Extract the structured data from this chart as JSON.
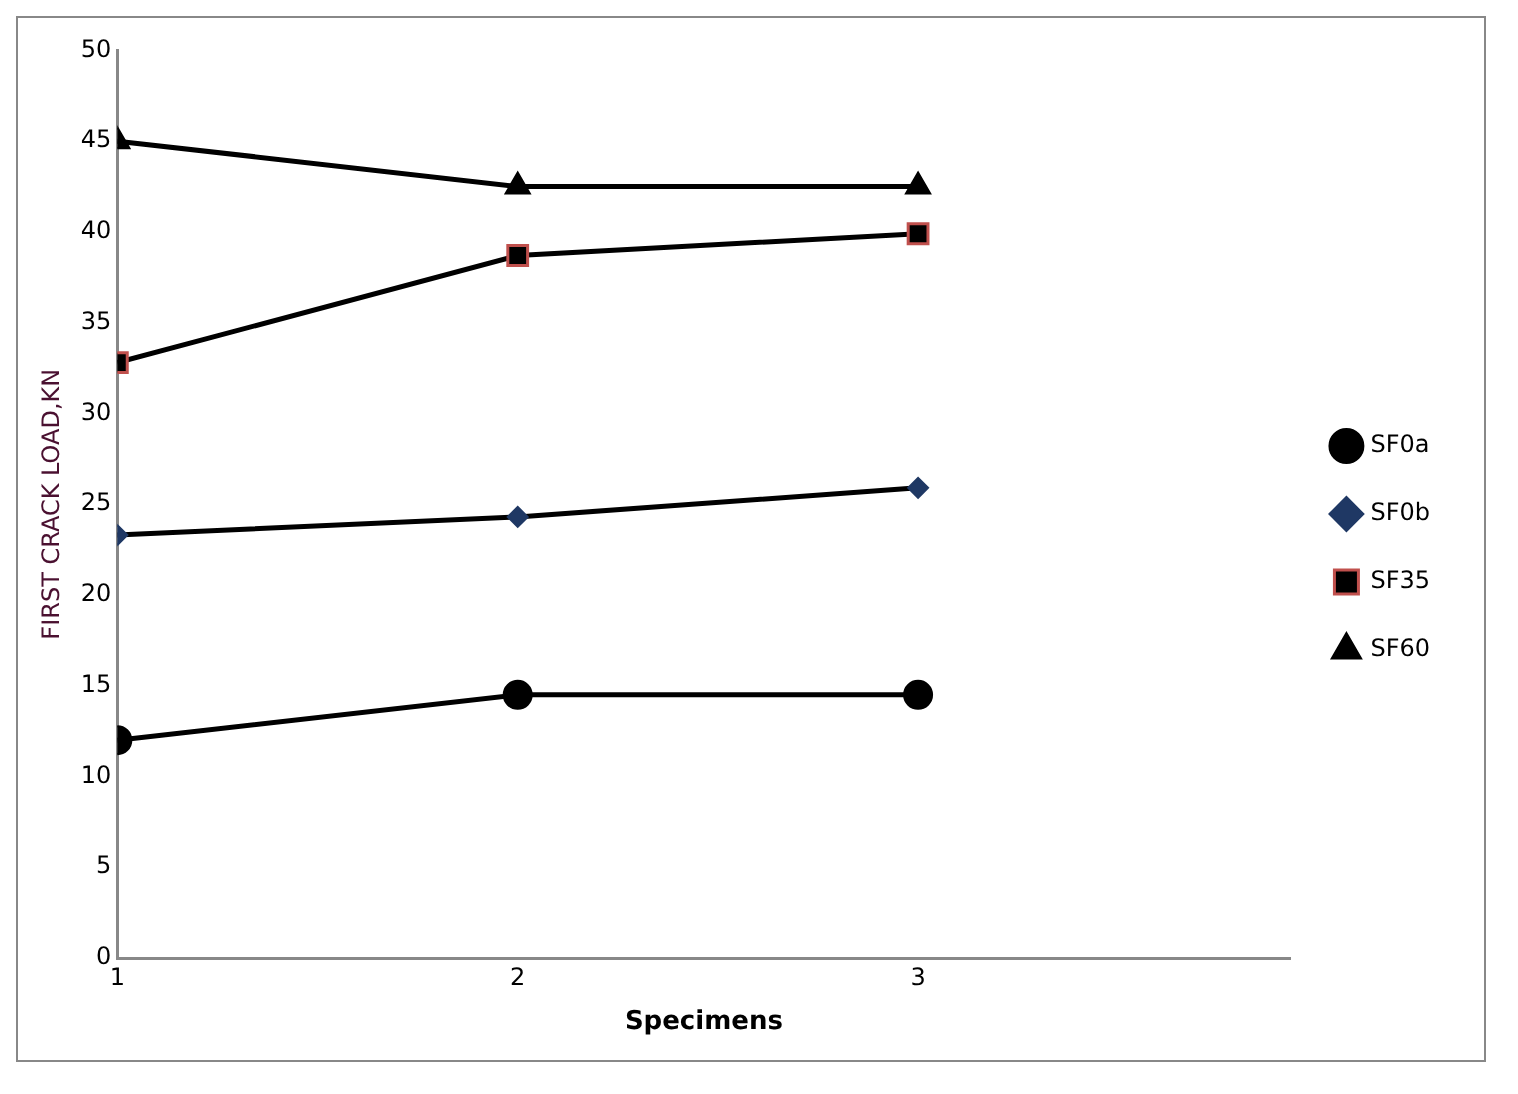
{
  "chart_data": {
    "type": "line",
    "xlabel": "Specimens",
    "ylabel": "FIRST CRACK LOAD,KN",
    "x": [
      1,
      2,
      3
    ],
    "xlim": [
      1,
      3.93
    ],
    "xticks": [
      1,
      2,
      3
    ],
    "ylim": [
      0,
      50
    ],
    "yticks": [
      0,
      5,
      10,
      15,
      20,
      25,
      30,
      35,
      40,
      45,
      50
    ],
    "grid": false,
    "legend": "right",
    "series": [
      {
        "name": "SF0a",
        "color": "#000000",
        "marker": "circle",
        "values": [
          12.0,
          14.5,
          14.5
        ]
      },
      {
        "name": "SF0b",
        "color": "#1f3864",
        "marker": "diamond",
        "values": [
          23.3,
          24.3,
          25.9
        ]
      },
      {
        "name": "SF35",
        "color": "#000000",
        "marker": "square",
        "values": [
          32.8,
          38.7,
          39.9
        ]
      },
      {
        "name": "SF60",
        "color": "#000000",
        "marker": "triangle",
        "values": [
          45.0,
          42.5,
          42.5
        ]
      }
    ]
  }
}
